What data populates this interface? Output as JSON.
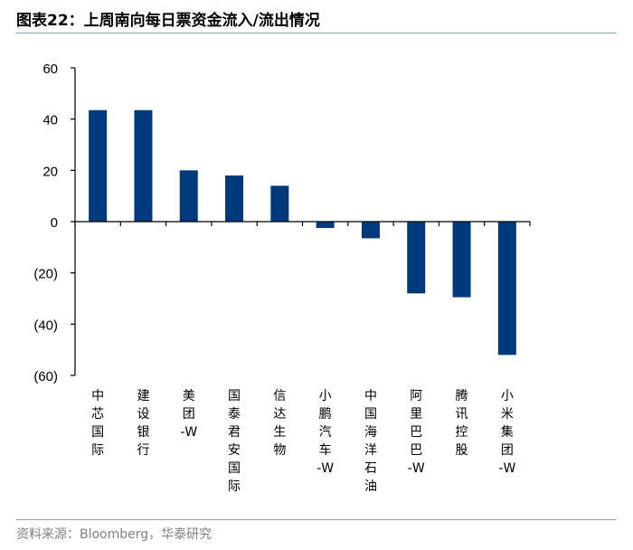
{
  "header": {
    "title": "图表22：上周南向每日票资金流入/流出情况"
  },
  "footer": {
    "source": "资料来源：Bloomberg，华泰研究"
  },
  "colors": {
    "bar": "#003a7d",
    "axis": "#000000",
    "rule": "#8aa6c8"
  },
  "chart_data": {
    "type": "bar",
    "title": "",
    "xlabel": "",
    "ylabel": "",
    "ylim": [
      -60,
      60
    ],
    "yticks": [
      60,
      40,
      20,
      0,
      -20,
      -40,
      -60
    ],
    "ytick_labels": [
      "60",
      "40",
      "20",
      "0",
      "(20)",
      "(40)",
      "(60)"
    ],
    "grid": false,
    "categories": [
      "中芯国际",
      "建设银行",
      "美团-W",
      "国泰君安国际",
      "信达生物",
      "小鹏汽车-W",
      "中国海洋石油",
      "阿里巴巴-W",
      "腾讯控股",
      "小米集团-W"
    ],
    "values": [
      43.5,
      43.5,
      20.0,
      18.0,
      14.0,
      -2.5,
      -6.5,
      -28.0,
      -29.5,
      -52.0
    ]
  }
}
